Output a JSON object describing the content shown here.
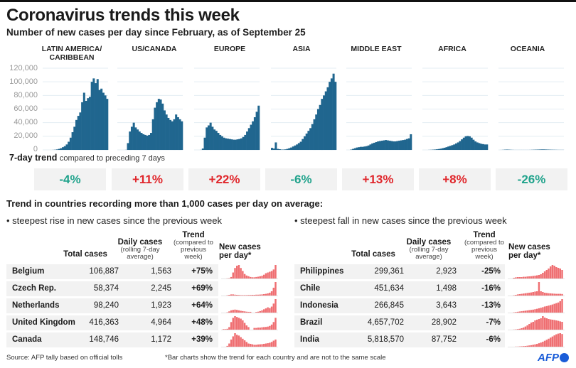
{
  "title": "Coronavirus trends this week",
  "subtitle": "Number of new cases per day since February, as of September 25",
  "colors": {
    "region_bar": "#20668f",
    "gridline": "#e3edf3",
    "up": "#e0262b",
    "down": "#21a38c",
    "spark": "#ef6f72",
    "row_bg": "#f2f2f2"
  },
  "chart_data": {
    "type": "bar",
    "title": "Number of new cases per day since February, as of September 25",
    "xlabel": "",
    "ylabel": "",
    "ylim": [
      0,
      120000
    ],
    "yticks": [
      "120,000",
      "100,000",
      "80,000",
      "60,000",
      "40,000",
      "20,000",
      "0"
    ],
    "ytick_values": [
      120000,
      100000,
      80000,
      60000,
      40000,
      20000,
      0
    ],
    "grid": true,
    "x_range": "February to September 25",
    "series": [
      {
        "name": "LATIN AMERICA/ CARIBBEAN",
        "label_lines": [
          "LATIN AMERICA/",
          "CARIBBEAN"
        ],
        "values": [
          0,
          0,
          0,
          0,
          0,
          100,
          300,
          700,
          1500,
          2500,
          4000,
          5500,
          8000,
          12000,
          18000,
          26000,
          34000,
          44000,
          50000,
          55000,
          70000,
          84000,
          72000,
          76000,
          78000,
          100000,
          105000,
          98000,
          104000,
          88000,
          90000,
          84000,
          80000,
          75000
        ]
      },
      {
        "name": "US/CANADA",
        "label_lines": [
          "US/CANADA"
        ],
        "values": [
          0,
          0,
          0,
          0,
          100,
          10000,
          27000,
          34000,
          40000,
          33000,
          30000,
          27000,
          25000,
          23000,
          22000,
          21000,
          22000,
          25000,
          45000,
          62000,
          70000,
          75000,
          74000,
          68000,
          58000,
          52000,
          47000,
          44000,
          42000,
          45000,
          52000,
          48000,
          45000,
          42000
        ]
      },
      {
        "name": "EUROPE",
        "label_lines": [
          "EUROPE"
        ],
        "values": [
          0,
          0,
          0,
          100,
          2000,
          18000,
          33000,
          36000,
          40000,
          34000,
          30000,
          28000,
          25000,
          22000,
          20000,
          18000,
          17000,
          16500,
          16000,
          15500,
          15000,
          15000,
          15500,
          16000,
          17000,
          19000,
          22000,
          27000,
          32000,
          37000,
          42000,
          48000,
          56000,
          65000
        ]
      },
      {
        "name": "ASIA",
        "label_lines": [
          "ASIA"
        ],
        "values": [
          3000,
          2000,
          11000,
          1500,
          1000,
          500,
          500,
          800,
          1500,
          2500,
          3500,
          5000,
          6500,
          8000,
          10000,
          12000,
          16000,
          20000,
          24000,
          28000,
          32000,
          38000,
          45000,
          52000,
          60000,
          66000,
          75000,
          80000,
          86000,
          92000,
          100000,
          105000,
          112000,
          100000
        ]
      },
      {
        "name": "MIDDLE EAST",
        "label_lines": [
          "MIDDLE EAST"
        ],
        "values": [
          0,
          0,
          500,
          1500,
          2500,
          3500,
          4000,
          4500,
          4500,
          5000,
          5500,
          6500,
          8000,
          9500,
          10500,
          11500,
          12500,
          13000,
          13500,
          14000,
          14500,
          14000,
          13500,
          13000,
          12500,
          12500,
          13000,
          13500,
          14000,
          14500,
          15000,
          16000,
          17000,
          23000
        ]
      },
      {
        "name": "AFRICA",
        "label_lines": [
          "AFRICA"
        ],
        "values": [
          0,
          0,
          0,
          100,
          200,
          400,
          600,
          900,
          1300,
          1800,
          2500,
          3200,
          4000,
          5000,
          6000,
          7000,
          8000,
          9500,
          11000,
          13000,
          15500,
          18000,
          20000,
          20500,
          20000,
          18000,
          15000,
          12500,
          11000,
          10000,
          9000,
          8500,
          8000,
          8000
        ]
      },
      {
        "name": "OCEANIA",
        "label_lines": [
          "OCEANIA"
        ],
        "values": [
          0,
          50,
          200,
          400,
          500,
          350,
          200,
          100,
          50,
          50,
          50,
          50,
          50,
          50,
          50,
          50,
          100,
          200,
          300,
          400,
          500,
          600,
          700,
          700,
          600,
          500,
          400,
          300,
          250,
          200,
          150,
          100,
          100,
          100
        ]
      }
    ]
  },
  "trend": {
    "label_bold": "7-day trend",
    "label_rest": "compared to preceding 7 days",
    "values": [
      {
        "region": "LATIN AMERICA/ CARIBBEAN",
        "text": "-4%",
        "direction": "down"
      },
      {
        "region": "US/CANADA",
        "text": "+11%",
        "direction": "up"
      },
      {
        "region": "EUROPE",
        "text": "+22%",
        "direction": "up"
      },
      {
        "region": "ASIA",
        "text": "-6%",
        "direction": "down"
      },
      {
        "region": "MIDDLE EAST",
        "text": "+13%",
        "direction": "up"
      },
      {
        "region": "AFRICA",
        "text": "+8%",
        "direction": "up"
      },
      {
        "region": "OCEANIA",
        "text": "-26%",
        "direction": "down"
      }
    ]
  },
  "countries_title": "Trend in countries recording more than 1,000 cases per day on average:",
  "table_headers": {
    "total": "Total cases",
    "daily": "Daily cases",
    "daily_sub": "(rolling 7-day average)",
    "trend": "Trend",
    "trend_sub": "(compared to previous week)",
    "spark": "New cases per day*"
  },
  "rise": {
    "heading": "• steepest rise in new cases since the previous week",
    "rows": [
      {
        "country": "Belgium",
        "total": "106,887",
        "daily": "1,563",
        "trend": "+75%",
        "spark": [
          0,
          0,
          1,
          2,
          10,
          40,
          70,
          85,
          90,
          70,
          50,
          30,
          20,
          15,
          10,
          8,
          8,
          10,
          12,
          15,
          18,
          25,
          35,
          40,
          45,
          50,
          60,
          90
        ]
      },
      {
        "country": "Czech Rep.",
        "total": "58,374",
        "daily": "2,245",
        "trend": "+69%",
        "spark": [
          0,
          0,
          2,
          5,
          8,
          8,
          6,
          5,
          4,
          3,
          3,
          3,
          3,
          4,
          4,
          5,
          5,
          6,
          6,
          7,
          8,
          10,
          12,
          15,
          20,
          30,
          55,
          95
        ]
      },
      {
        "country": "Netherlands",
        "total": "98,240",
        "daily": "1,923",
        "trend": "+64%",
        "spark": [
          0,
          0,
          2,
          8,
          15,
          18,
          20,
          18,
          15,
          12,
          10,
          8,
          6,
          5,
          5,
          0,
          0,
          4,
          6,
          10,
          15,
          22,
          28,
          35,
          30,
          40,
          60,
          90
        ]
      },
      {
        "country": "United Kingdom",
        "total": "416,363",
        "daily": "4,964",
        "trend": "+48%",
        "spark": [
          3,
          3,
          5,
          15,
          45,
          70,
          80,
          75,
          70,
          65,
          55,
          40,
          25,
          15,
          0,
          0,
          10,
          10,
          12,
          12,
          14,
          15,
          16,
          18,
          22,
          30,
          45,
          70
        ]
      },
      {
        "country": "Canada",
        "total": "148,746",
        "daily": "1,172",
        "trend": "+39%",
        "spark": [
          0,
          0,
          5,
          20,
          45,
          65,
          85,
          75,
          70,
          60,
          50,
          40,
          30,
          20,
          18,
          15,
          12,
          12,
          14,
          15,
          16,
          18,
          20,
          22,
          25,
          30,
          38,
          45
        ]
      }
    ]
  },
  "fall": {
    "heading": "• steepest fall in new cases since the previous week",
    "rows": [
      {
        "country": "Philippines",
        "total": "299,361",
        "daily": "2,923",
        "trend": "-25%",
        "spark": [
          0,
          0,
          5,
          8,
          10,
          10,
          10,
          12,
          12,
          14,
          15,
          16,
          18,
          20,
          22,
          25,
          30,
          40,
          50,
          60,
          70,
          85,
          95,
          90,
          80,
          75,
          70,
          60
        ]
      },
      {
        "country": "Chile",
        "total": "451,634",
        "daily": "1,498",
        "trend": "-16%",
        "spark": [
          0,
          0,
          2,
          5,
          8,
          10,
          12,
          14,
          16,
          18,
          20,
          22,
          25,
          28,
          30,
          95,
          30,
          25,
          20,
          18,
          16,
          15,
          14,
          13,
          12,
          12,
          12,
          11
        ]
      },
      {
        "country": "Indonesia",
        "total": "266,845",
        "daily": "3,643",
        "trend": "-13%",
        "spark": [
          0,
          0,
          2,
          4,
          6,
          8,
          10,
          12,
          14,
          16,
          18,
          20,
          22,
          25,
          28,
          32,
          36,
          40,
          45,
          48,
          52,
          56,
          60,
          65,
          70,
          75,
          85,
          100
        ]
      },
      {
        "country": "Brazil",
        "total": "4,657,702",
        "daily": "28,902",
        "trend": "-7%",
        "spark": [
          0,
          0,
          1,
          2,
          4,
          6,
          10,
          15,
          22,
          30,
          40,
          50,
          55,
          65,
          70,
          75,
          80,
          95,
          85,
          80,
          75,
          72,
          70,
          68,
          65,
          62,
          58,
          55
        ]
      },
      {
        "country": "India",
        "total": "5,818,570",
        "daily": "87,752",
        "trend": "-6%",
        "spark": [
          0,
          0,
          0,
          1,
          1,
          2,
          3,
          4,
          5,
          7,
          9,
          11,
          14,
          17,
          20,
          25,
          30,
          36,
          43,
          50,
          58,
          66,
          74,
          82,
          90,
          95,
          98,
          92
        ]
      }
    ]
  },
  "footer": {
    "source": "Source: AFP tally based on official tolls",
    "note": "*Bar charts show the trend for each country and are not to the same scale",
    "logo": "AFP"
  }
}
